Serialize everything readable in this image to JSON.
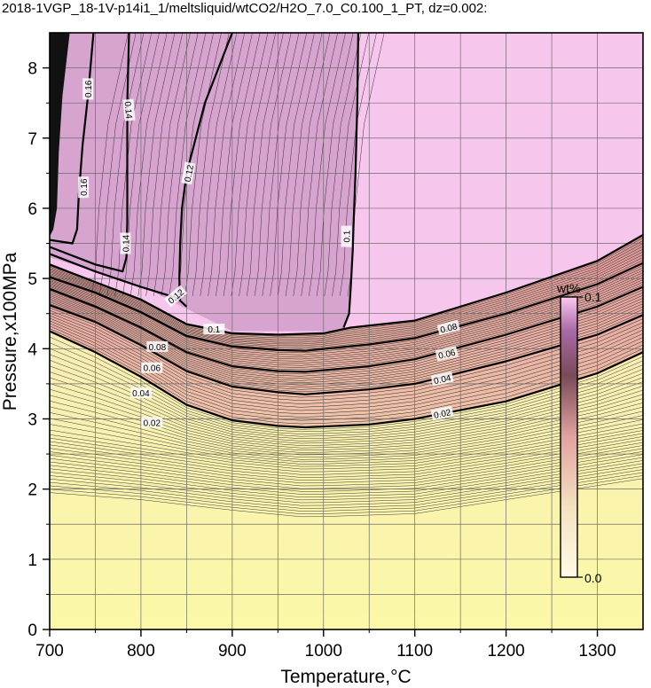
{
  "chart_data": {
    "type": "heatmap",
    "title": "2018-1VGP_18-1V-p14i1_1/meltsliquid/wtCO2/H2O_7.0_C0.100_1_PT, dz=0.002:",
    "xlabel": "Temperature,°C",
    "ylabel": "Pressure,x100MPa",
    "xlim": [
      700,
      1350
    ],
    "ylim": [
      0,
      8.5
    ],
    "x_ticks": [
      "700",
      "800",
      "900",
      "1000",
      "1100",
      "1200",
      "1300"
    ],
    "y_ticks": [
      "0",
      "1",
      "2",
      "3",
      "4",
      "5",
      "6",
      "7",
      "8"
    ],
    "grid": true,
    "colorbar": {
      "unit": "wt%",
      "max_label": "0.1",
      "min_label": "0.0",
      "min": 0.0,
      "max": 0.1,
      "position": "inside-right"
    },
    "contour_interval": 0.002,
    "contours": [
      {
        "level": "0.02",
        "points": [
          [
            700,
            4.25
          ],
          [
            750,
            3.95
          ],
          [
            800,
            3.6
          ],
          [
            850,
            3.2
          ],
          [
            900,
            2.98
          ],
          [
            950,
            2.9
          ],
          [
            980,
            2.88
          ],
          [
            1050,
            2.92
          ],
          [
            1100,
            3.0
          ],
          [
            1200,
            3.25
          ],
          [
            1300,
            3.65
          ],
          [
            1350,
            3.95
          ]
        ]
      },
      {
        "level": "0.04",
        "points": [
          [
            700,
            4.62
          ],
          [
            750,
            4.38
          ],
          [
            800,
            4.05
          ],
          [
            850,
            3.68
          ],
          [
            900,
            3.46
          ],
          [
            950,
            3.38
          ],
          [
            980,
            3.35
          ],
          [
            1050,
            3.42
          ],
          [
            1100,
            3.5
          ],
          [
            1200,
            3.82
          ],
          [
            1300,
            4.2
          ],
          [
            1350,
            4.48
          ]
        ]
      },
      {
        "level": "0.06",
        "points": [
          [
            700,
            4.85
          ],
          [
            750,
            4.6
          ],
          [
            800,
            4.3
          ],
          [
            850,
            3.95
          ],
          [
            900,
            3.75
          ],
          [
            950,
            3.68
          ],
          [
            980,
            3.67
          ],
          [
            1050,
            3.75
          ],
          [
            1100,
            3.85
          ],
          [
            1200,
            4.2
          ],
          [
            1300,
            4.6
          ],
          [
            1350,
            4.88
          ]
        ]
      },
      {
        "level": "0.08",
        "points": [
          [
            700,
            5.02
          ],
          [
            750,
            4.8
          ],
          [
            800,
            4.52
          ],
          [
            850,
            4.18
          ],
          [
            900,
            4.03
          ],
          [
            950,
            3.98
          ],
          [
            980,
            3.97
          ],
          [
            1050,
            4.06
          ],
          [
            1100,
            4.15
          ],
          [
            1200,
            4.5
          ],
          [
            1300,
            4.92
          ],
          [
            1350,
            5.22
          ]
        ]
      },
      {
        "level": "0.1",
        "points": [
          [
            700,
            5.2
          ],
          [
            750,
            4.95
          ],
          [
            800,
            4.7
          ],
          [
            850,
            4.35
          ],
          [
            900,
            4.22
          ],
          [
            950,
            4.2
          ],
          [
            1000,
            4.22
          ],
          [
            1030,
            4.3
          ],
          [
            1100,
            4.4
          ],
          [
            1200,
            4.8
          ],
          [
            1300,
            5.25
          ],
          [
            1350,
            5.62
          ]
        ]
      },
      {
        "level": "0.1",
        "points": [
          [
            1038,
            8.5
          ],
          [
            1037,
            7.5
          ],
          [
            1035,
            6.5
          ],
          [
            1033,
            5.8
          ],
          [
            1032,
            5.4
          ],
          [
            1030,
            4.9
          ],
          [
            1028,
            4.5
          ],
          [
            1022,
            4.3
          ]
        ]
      },
      {
        "level": "0.12",
        "points": [
          [
            700,
            5.35
          ],
          [
            750,
            5.1
          ],
          [
            800,
            4.88
          ],
          [
            840,
            4.72
          ],
          [
            850,
            4.6
          ]
        ]
      },
      {
        "level": "0.12",
        "points": [
          [
            900,
            8.5
          ],
          [
            885,
            8.0
          ],
          [
            870,
            7.5
          ],
          [
            860,
            7.0
          ],
          [
            850,
            6.5
          ],
          [
            845,
            6.0
          ],
          [
            843,
            5.5
          ],
          [
            842,
            5.0
          ],
          [
            843,
            4.7
          ]
        ]
      },
      {
        "level": "0.14",
        "points": [
          [
            787,
            8.5
          ],
          [
            785,
            7.5
          ],
          [
            785,
            6.5
          ],
          [
            785,
            5.8
          ],
          [
            784,
            5.3
          ],
          [
            780,
            5.1
          ],
          [
            750,
            5.2
          ],
          [
            700,
            5.45
          ]
        ]
      },
      {
        "level": "0.16",
        "points": [
          [
            748,
            8.5
          ],
          [
            742,
            7.6
          ],
          [
            736,
            6.9
          ],
          [
            732,
            6.2
          ],
          [
            730,
            5.7
          ],
          [
            725,
            5.5
          ],
          [
            700,
            5.55
          ]
        ]
      }
    ],
    "contour_labels": [
      {
        "text": "0.02",
        "x": 812,
        "y": 2.95,
        "rotate": 0
      },
      {
        "text": "0.02",
        "x": 1130,
        "y": 3.08,
        "rotate": -12
      },
      {
        "text": "0.04",
        "x": 800,
        "y": 3.37,
        "rotate": 0
      },
      {
        "text": "0.04",
        "x": 1130,
        "y": 3.57,
        "rotate": -12
      },
      {
        "text": "0.06",
        "x": 812,
        "y": 3.73,
        "rotate": 0
      },
      {
        "text": "0.06",
        "x": 1135,
        "y": 3.93,
        "rotate": -13
      },
      {
        "text": "0.08",
        "x": 818,
        "y": 4.03,
        "rotate": 0
      },
      {
        "text": "0.08",
        "x": 1137,
        "y": 4.3,
        "rotate": -14
      },
      {
        "text": "0.1",
        "x": 880,
        "y": 4.28,
        "rotate": 0
      },
      {
        "text": "0.1",
        "x": 1025,
        "y": 5.6,
        "rotate": -90
      },
      {
        "text": "0.12",
        "x": 838,
        "y": 4.75,
        "rotate": -40
      },
      {
        "text": "0.12",
        "x": 852,
        "y": 6.5,
        "rotate": -80
      },
      {
        "text": "0.14",
        "x": 783,
        "y": 5.5,
        "rotate": -90
      },
      {
        "text": "0.14",
        "x": 787,
        "y": 7.4,
        "rotate": 85
      },
      {
        "text": "0.16",
        "x": 737,
        "y": 6.3,
        "rotate": -90
      },
      {
        "text": "0.16",
        "x": 742,
        "y": 7.7,
        "rotate": -90
      }
    ]
  }
}
